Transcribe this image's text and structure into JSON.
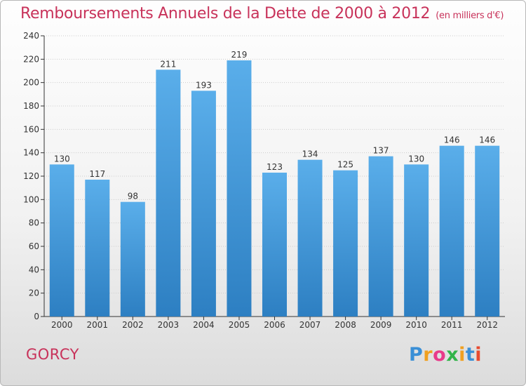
{
  "title": "Remboursements Annuels de la Dette de 2000 à 2012",
  "unit": "(en milliers d'€)",
  "commune": "GORCY",
  "logo": {
    "letters": [
      "P",
      "r",
      "o",
      "x",
      "i",
      "t",
      "i"
    ],
    "colors": [
      "#3a8fd6",
      "#f0a020",
      "#e83a8a",
      "#32b44a",
      "#f0a020",
      "#3a8fd6",
      "#e84a30"
    ]
  },
  "colors": {
    "accent": "#c8325a",
    "bar_top": "#5aaeea",
    "bar_bottom": "#2d7fc2"
  },
  "chart_data": {
    "type": "bar",
    "categories": [
      "2000",
      "2001",
      "2002",
      "2003",
      "2004",
      "2005",
      "2006",
      "2007",
      "2008",
      "2009",
      "2010",
      "2011",
      "2012"
    ],
    "values": [
      130,
      117,
      98,
      211,
      193,
      219,
      123,
      134,
      125,
      137,
      130,
      146,
      146
    ],
    "ylim": [
      0,
      240
    ],
    "yticks": [
      0,
      20,
      40,
      60,
      80,
      100,
      120,
      140,
      160,
      180,
      200,
      220,
      240
    ],
    "grid": true
  }
}
